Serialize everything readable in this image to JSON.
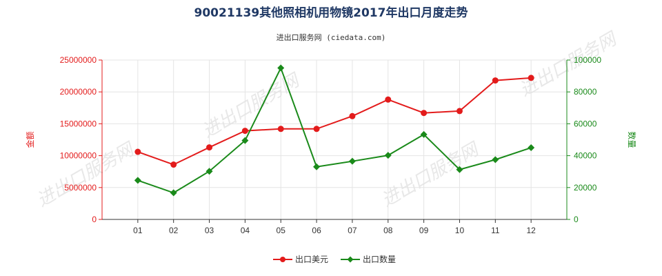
{
  "chart_data": {
    "type": "line",
    "title": "90021139其他照相机用物镜2017年出口月度走势",
    "subtitle": "进出口服务网 (ciedata.com)",
    "watermark": "进出口服务网",
    "categories": [
      "01",
      "02",
      "03",
      "04",
      "05",
      "06",
      "07",
      "08",
      "09",
      "10",
      "11",
      "12"
    ],
    "y_left": {
      "label": "金额",
      "ylim": [
        0,
        25000000
      ],
      "ticks": [
        "0",
        "5000000",
        "10000000",
        "15000000",
        "20000000",
        "25000000"
      ],
      "color": "#e31b1b"
    },
    "y_right": {
      "label": "数量",
      "ylim": [
        0,
        100000
      ],
      "ticks": [
        "0",
        "20000",
        "40000",
        "60000",
        "80000",
        "100000"
      ],
      "color": "#1a8a1a"
    },
    "series": [
      {
        "name": "出口美元",
        "axis": "left",
        "color": "#e31b1b",
        "marker": "circle",
        "values": [
          10600000,
          8600000,
          11300000,
          13900000,
          14200000,
          14200000,
          16200000,
          18800000,
          16700000,
          17000000,
          21800000,
          22200000
        ]
      },
      {
        "name": "出口数量",
        "axis": "right",
        "color": "#1a8a1a",
        "marker": "diamond",
        "values": [
          24500,
          16700,
          30200,
          49500,
          95000,
          33000,
          36500,
          40200,
          53300,
          31300,
          37500,
          45000
        ]
      }
    ],
    "grid": true,
    "legend_position": "bottom-center"
  }
}
